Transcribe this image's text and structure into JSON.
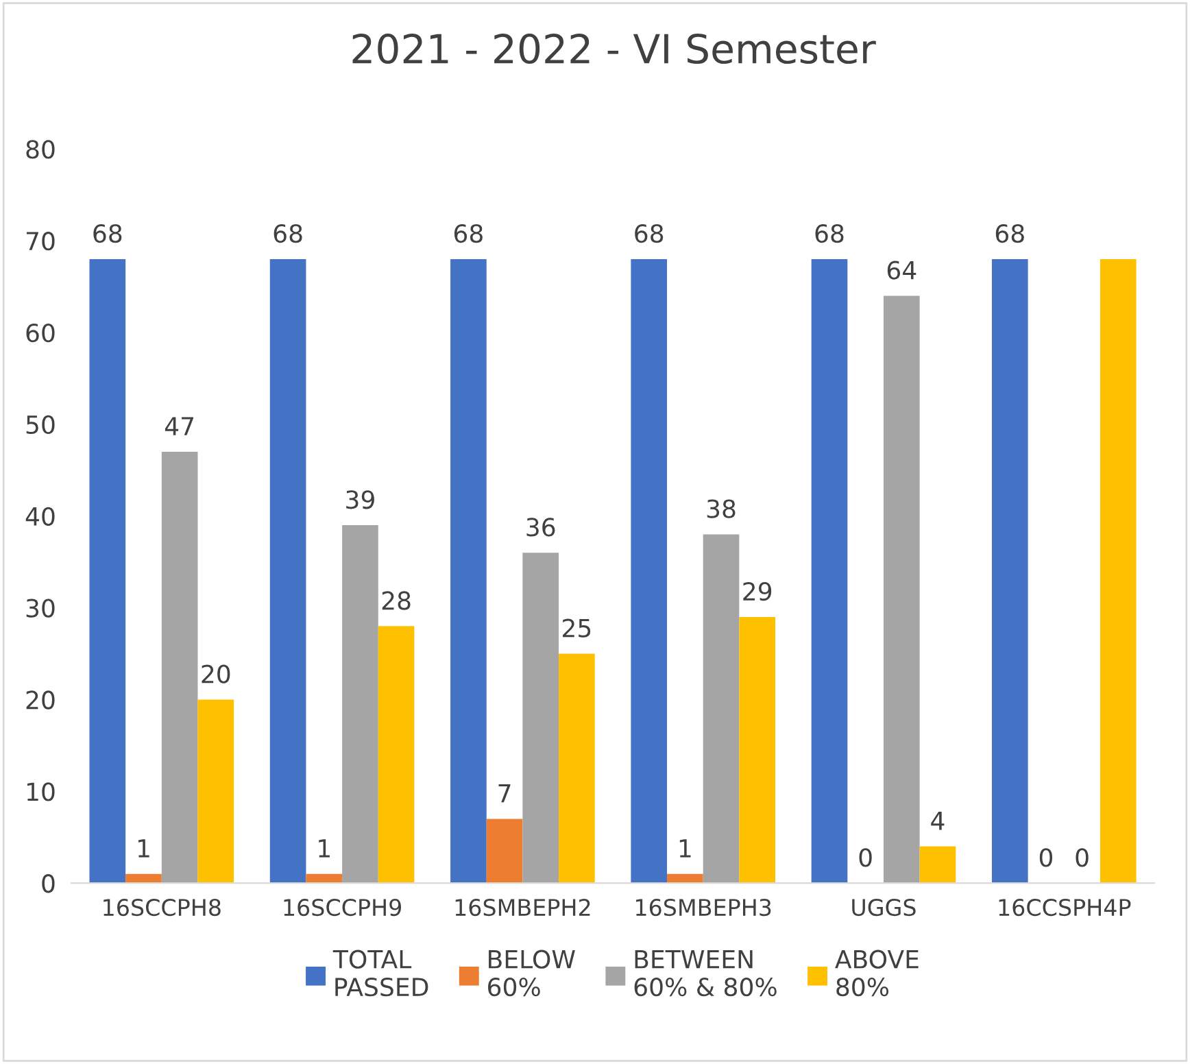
{
  "chart_data": {
    "type": "bar",
    "title": "2021 - 2022 - VI Semester",
    "categories": [
      "16SCCPH8",
      "16SCCPH9",
      "16SMBEPH2",
      "16SMBEPH3",
      "UGGS",
      "16CCSPH4P"
    ],
    "series": [
      {
        "name": "TOTAL PASSED",
        "color": "#4472c4",
        "values": [
          68,
          68,
          68,
          68,
          68,
          68
        ],
        "value_labels": [
          "68",
          "68",
          "68",
          "68",
          "68",
          "68"
        ]
      },
      {
        "name": "BELOW 60%",
        "color": "#ed7d31",
        "values": [
          1,
          1,
          7,
          1,
          0,
          0
        ],
        "value_labels": [
          "1",
          "1",
          "7",
          "1",
          "0",
          "0"
        ]
      },
      {
        "name": "BETWEEN 60% & 80%",
        "color": "#a5a5a5",
        "values": [
          47,
          39,
          36,
          38,
          64,
          0
        ],
        "value_labels": [
          "47",
          "39",
          "36",
          "38",
          "64",
          "0"
        ]
      },
      {
        "name": "ABOVE 80%",
        "color": "#ffc000",
        "values": [
          20,
          28,
          25,
          29,
          4,
          68
        ],
        "value_labels": [
          "20",
          "28",
          "25",
          "29",
          "4",
          null
        ]
      }
    ],
    "ylim": [
      0,
      80
    ],
    "yticks": [
      0,
      10,
      20,
      30,
      40,
      50,
      60,
      70,
      80
    ],
    "grid": false,
    "legend": "bottom"
  }
}
